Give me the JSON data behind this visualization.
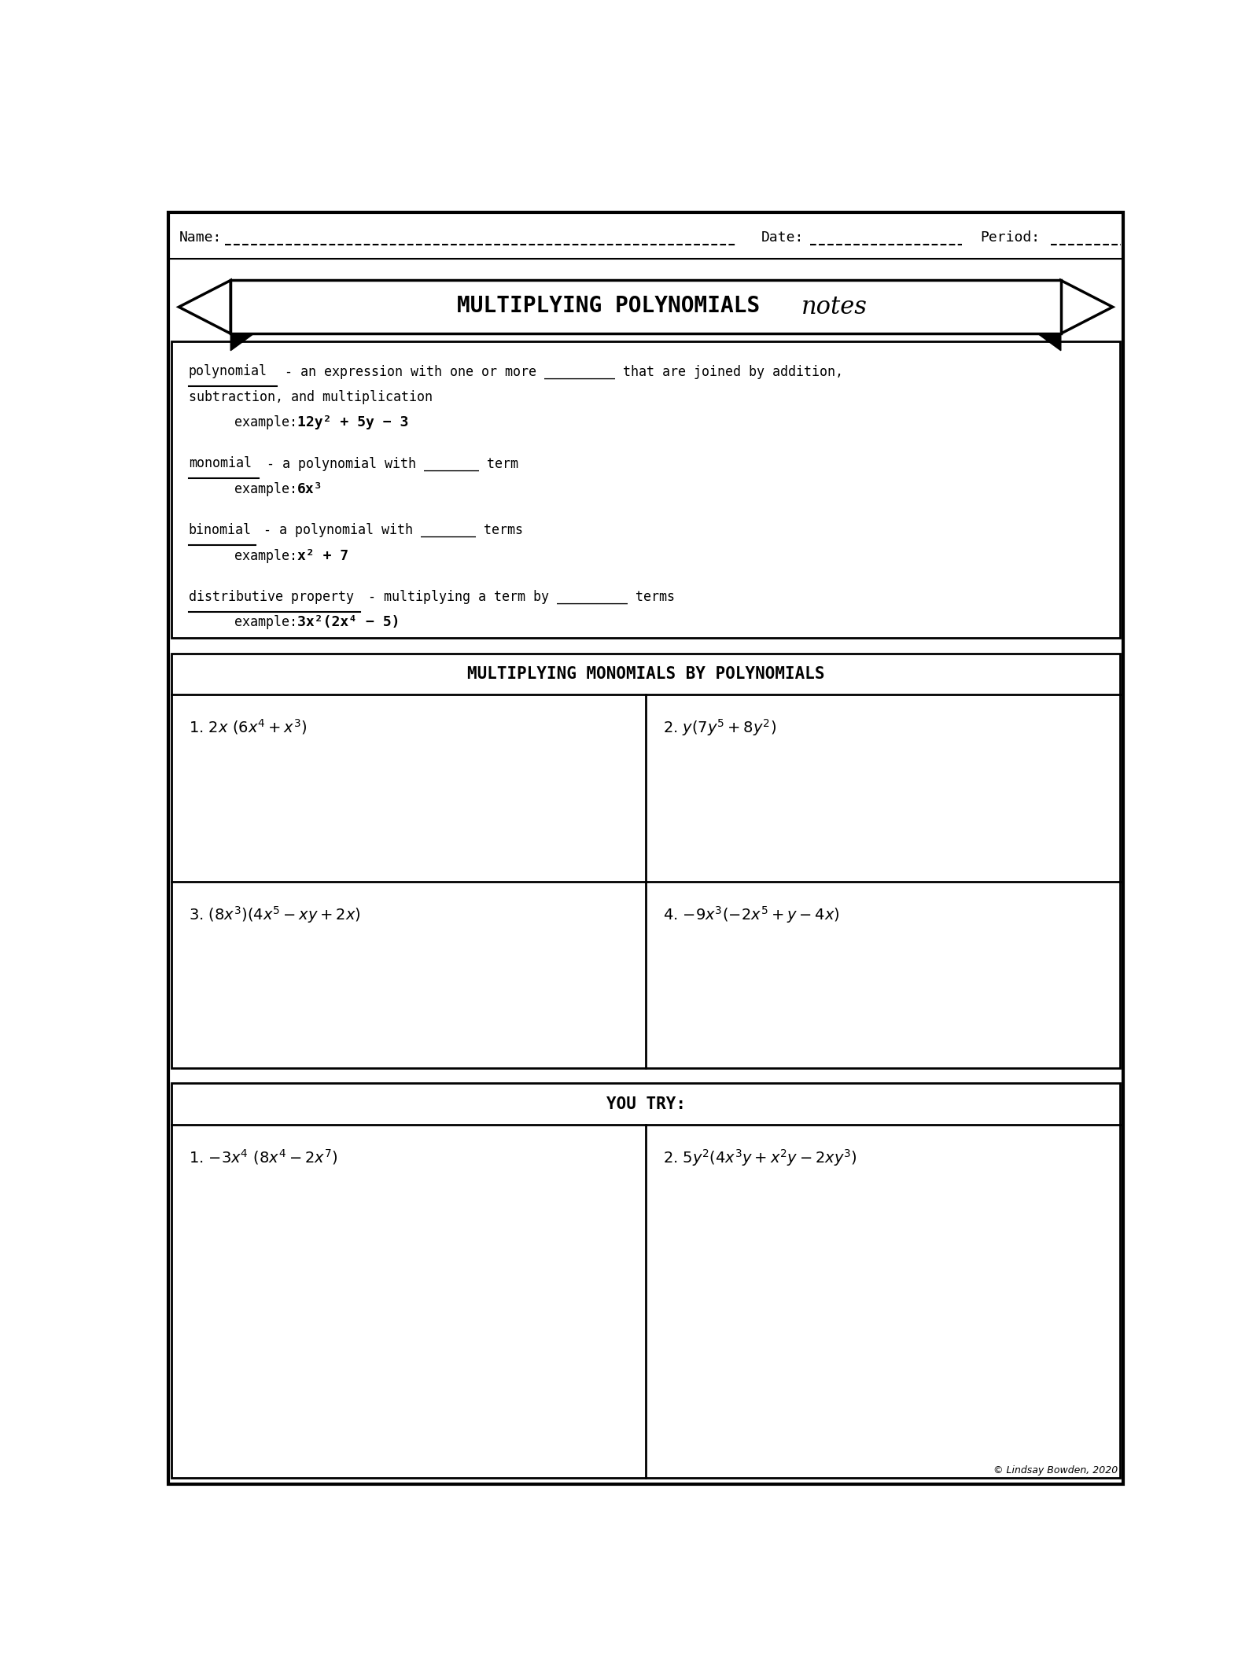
{
  "page_bg": "#ffffff",
  "border_color": "#000000",
  "title_bold": "MULTIPLYING POLYNOMIALS ",
  "title_cursive": "notes",
  "name_label": "Name:",
  "date_label": "Date:",
  "period_label": "Period:",
  "section2_title": "MULTIPLYING MONOMIALS BY POLYNOMIALS",
  "you_try_title": "YOU TRY:",
  "copyright": "© Lindsay Bowden, 2020",
  "def_terms": [
    "polynomial",
    "monomial",
    "binomial",
    "distributive property"
  ],
  "def_underline_lens": [
    1.45,
    1.15,
    1.1,
    2.82
  ],
  "def_lines": [
    " - an expression with one or more _________ that are joined by addition,",
    " - a polynomial with _______ term",
    " - a polynomial with _______ terms",
    " - multiplying a term by _________ terms"
  ],
  "def_line2": [
    "subtraction, and multiplication",
    "",
    "",
    ""
  ],
  "def_examples_label": [
    "example: ",
    "example: ",
    "example: ",
    "example: "
  ],
  "def_examples_math": [
    "12y² + 5y − 3",
    "6x³",
    "x² + 7",
    "3x²(2x⁴ − 5)"
  ],
  "prob_texts": [
    "1. $2x\\ (6x^4 + x^3)$",
    "2. $y(7y^5 + 8y^2)$",
    "3. $(8x^3)(4x^5 - xy + 2x)$",
    "4. $-9x^3(-2x^5 + y - 4x)$"
  ],
  "you_try_texts": [
    "1. $-3x^4\\ (8x^4 - 2x^7)$",
    "2. $5y^2(4x^3y + x^2y - 2xy^3)$"
  ]
}
